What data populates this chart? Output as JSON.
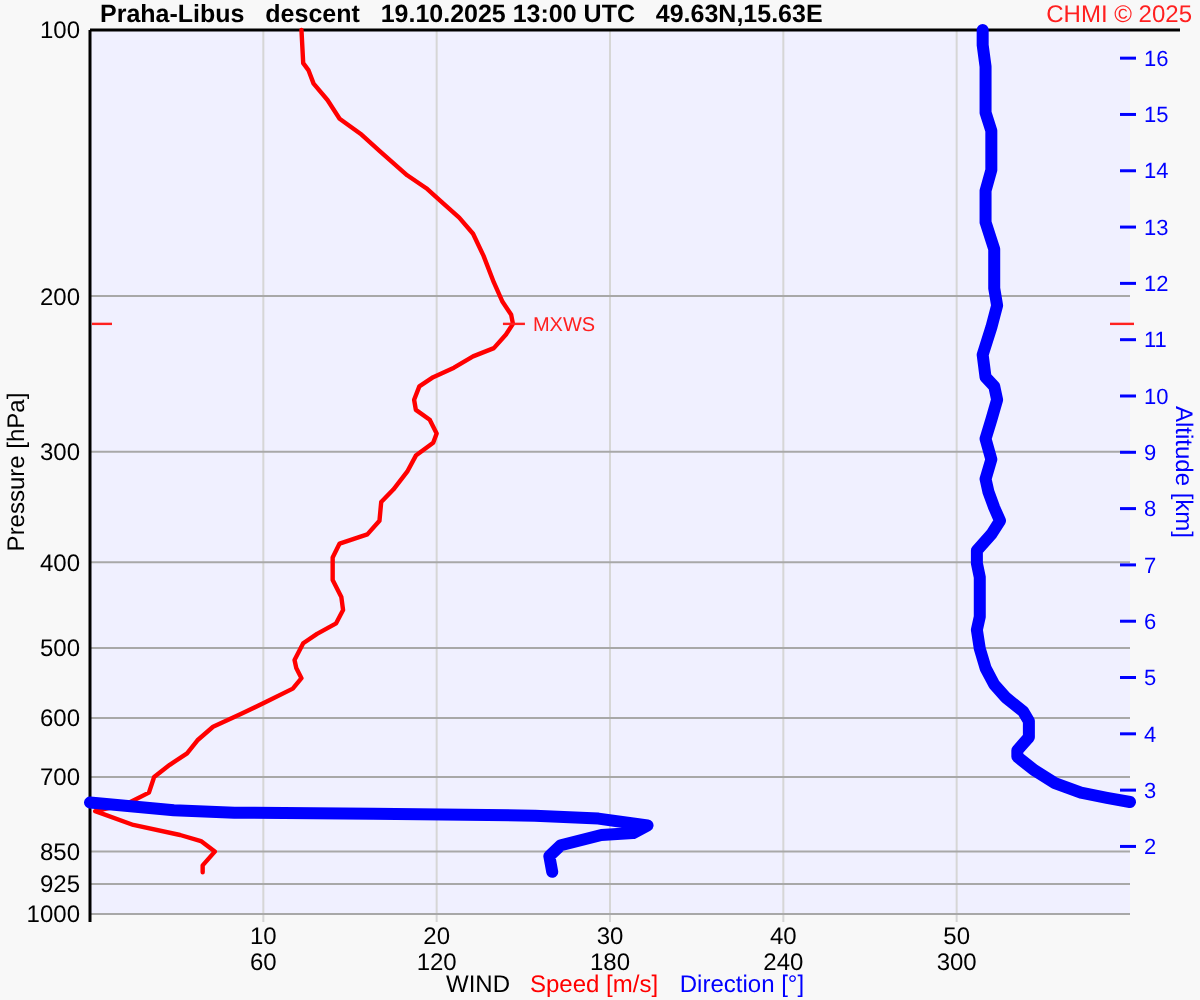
{
  "chart_data": {
    "type": "line",
    "orientation": "horizontal",
    "title": "Praha-Libus   descent   19.10.2025 13:00 UTC   49.63N,15.63E",
    "xlabel": "WIND",
    "ylabel": "Pressure [hPa]",
    "y2label": "Altitude [km]",
    "annotations": [
      "CHMI © 2025",
      {
        "text": "MXWS",
        "x": 24.4,
        "y": 215
      }
    ],
    "series": [
      {
        "name": "Speed [m/s]",
        "color": "#ff0000",
        "x": [
          100,
          109,
          111,
          115,
          120,
          126,
          131,
          137,
          146,
          151,
          156,
          163,
          170,
          180,
          193,
          203,
          210,
          215,
          221,
          229,
          234,
          241,
          247,
          253,
          262,
          269,
          276,
          286,
          293,
          303,
          316,
          331,
          342,
          359,
          372,
          381,
          395,
          419,
          438,
          453,
          469,
          482,
          494,
          516,
          527,
          541,
          556,
          575,
          594,
          614,
          636,
          658,
          678,
          700,
          729,
          751,
          765,
          793,
          814,
          827,
          850,
          881,
          897
        ],
        "values": [
          12.2,
          12.3,
          12.6,
          12.9,
          13.7,
          14.4,
          15.6,
          16.7,
          18.3,
          19.4,
          20.2,
          21.3,
          22.1,
          22.7,
          23.3,
          23.8,
          24.3,
          24.4,
          24.0,
          23.3,
          22.1,
          21.0,
          19.8,
          19.0,
          18.7,
          18.8,
          19.6,
          20.0,
          19.8,
          18.8,
          18.3,
          17.5,
          16.8,
          16.7,
          16.0,
          14.4,
          14.0,
          14.0,
          14.5,
          14.6,
          14.2,
          13.1,
          12.3,
          11.8,
          11.9,
          12.2,
          11.7,
          10.2,
          8.7,
          7.1,
          6.2,
          5.6,
          4.6,
          3.7,
          3.4,
          2.1,
          0.3,
          2.5,
          5.2,
          6.4,
          7.2,
          6.5,
          6.5
        ]
      },
      {
        "name": "Direction [°]",
        "color": "#0000ff",
        "axis": "x2",
        "x": [
          100,
          104,
          110,
          124,
          130,
          144,
          152,
          165,
          177,
          196,
          205,
          217,
          233,
          247,
          253,
          262,
          276,
          290,
          306,
          322,
          333,
          347,
          359,
          372,
          388,
          401,
          416,
          461,
          477,
          501,
          527,
          550,
          569,
          590,
          605,
          631,
          653,
          664,
          688,
          711,
          729,
          739,
          747,
          null,
          748,
          763,
          768,
          770,
          774,
          780,
          790,
          794,
          810,
          814,
          836,
          860,
          896
        ],
        "values": [
          309,
          309,
          310,
          310,
          312,
          312,
          310,
          310,
          313,
          313,
          314,
          312,
          309,
          310,
          313,
          314,
          312,
          310,
          312,
          310,
          311,
          313,
          315,
          312,
          307,
          307,
          308,
          308,
          307,
          308,
          310,
          313,
          317,
          323,
          325,
          325,
          321,
          321,
          327,
          334,
          343,
          352,
          360,
          null,
          0,
          29,
          50,
          98,
          154,
          176,
          188,
          193,
          188,
          177,
          163,
          159,
          160
        ]
      }
    ],
    "xlim": [
      0,
      60
    ],
    "xticks": [
      10,
      20,
      30,
      40,
      50
    ],
    "x2lim": [
      0,
      360
    ],
    "x2ticks": [
      60,
      120,
      180,
      240,
      300
    ],
    "ylim": [
      1000,
      100
    ],
    "yticks": [
      100,
      200,
      300,
      400,
      500,
      600,
      700,
      850,
      925,
      1000
    ],
    "y2lim": [
      0.8,
      16.5
    ],
    "y2ticks": [
      2,
      3,
      4,
      5,
      6,
      7,
      8,
      9,
      10,
      11,
      12,
      13,
      14,
      15,
      16
    ],
    "log": "y",
    "grid": true,
    "legend": "bottom"
  }
}
